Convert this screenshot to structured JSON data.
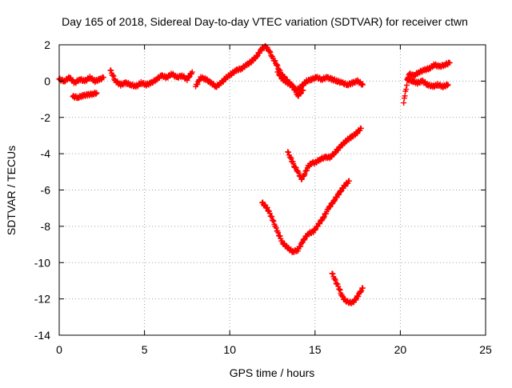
{
  "chart_data": {
    "type": "scatter",
    "title": "Day 165 of 2018, Sidereal Day-to-day VTEC variation (SDTVAR) for receiver ctwn",
    "xlabel": "GPS time / hours",
    "ylabel": "SDTVAR / TECUs",
    "xlim": [
      0,
      25
    ],
    "ylim": [
      -14,
      2
    ],
    "xticks": [
      0,
      5,
      10,
      15,
      20,
      25
    ],
    "yticks": [
      -14,
      -12,
      -10,
      -8,
      -6,
      -4,
      -2,
      0,
      2
    ],
    "grid": true,
    "marker": "plus",
    "legend": "none",
    "series_color": "#ff0000",
    "segments": [
      {
        "x": [
          0.0,
          0.3,
          0.6,
          0.9,
          1.2,
          1.5,
          1.8,
          2.1,
          2.4,
          2.6
        ],
        "y": [
          0.1,
          0.0,
          0.2,
          -0.1,
          0.1,
          0.0,
          0.2,
          0.0,
          0.1,
          0.2
        ]
      },
      {
        "x": [
          0.8,
          1.1,
          1.4,
          1.7,
          2.0,
          2.2
        ],
        "y": [
          -0.85,
          -0.9,
          -0.8,
          -0.75,
          -0.7,
          -0.65
        ]
      },
      {
        "x": [
          3.0,
          3.3,
          3.6,
          3.9,
          4.2,
          4.5,
          4.8,
          5.1,
          5.4,
          5.7,
          6.0,
          6.3,
          6.6,
          6.9,
          7.2,
          7.5,
          7.8
        ],
        "y": [
          0.6,
          0.0,
          -0.2,
          -0.1,
          -0.2,
          -0.3,
          -0.1,
          -0.2,
          -0.1,
          0.1,
          0.3,
          0.2,
          0.4,
          0.2,
          0.3,
          0.1,
          0.5
        ]
      },
      {
        "x": [
          8.0,
          8.3,
          8.6,
          8.9,
          9.2,
          9.5,
          9.8,
          10.1,
          10.4,
          10.7,
          11.0,
          11.3,
          11.6,
          11.9,
          12.1,
          12.3,
          12.5,
          12.7,
          12.9,
          13.1,
          13.3,
          13.6,
          13.9,
          14.2,
          14.5,
          14.8,
          15.1,
          15.4,
          15.7,
          16.0,
          16.3,
          16.6,
          16.9,
          17.2,
          17.5,
          17.8
        ],
        "y": [
          -0.3,
          0.2,
          0.1,
          -0.1,
          -0.3,
          -0.1,
          0.2,
          0.4,
          0.6,
          0.7,
          0.9,
          1.1,
          1.4,
          1.8,
          1.9,
          1.7,
          1.3,
          1.0,
          0.6,
          0.3,
          0.1,
          -0.2,
          -0.5,
          -0.3,
          0.0,
          0.1,
          0.2,
          0.1,
          0.2,
          0.1,
          0.0,
          -0.1,
          -0.2,
          -0.1,
          0.0,
          -0.2
        ]
      },
      {
        "x": [
          12.8,
          13.1,
          13.4,
          13.7,
          14.0,
          14.3
        ],
        "y": [
          0.5,
          0.1,
          -0.1,
          -0.3,
          -0.8,
          -0.5
        ]
      },
      {
        "x": [
          20.2,
          20.3,
          20.5,
          20.8,
          21.1,
          21.4,
          21.7,
          22.0,
          22.3,
          22.6,
          22.9
        ],
        "y": [
          -1.2,
          -0.6,
          0.4,
          0.3,
          0.5,
          0.6,
          0.7,
          0.9,
          0.8,
          0.9,
          1.0
        ]
      },
      {
        "x": [
          20.4,
          20.7,
          21.0,
          21.3,
          21.6,
          21.9,
          22.2,
          22.5,
          22.8
        ],
        "y": [
          0.1,
          0.0,
          -0.1,
          0.0,
          -0.2,
          -0.3,
          -0.2,
          -0.3,
          -0.2
        ]
      },
      {
        "x": [
          13.4,
          13.6,
          13.8,
          14.0,
          14.2,
          14.4,
          14.6,
          14.8,
          15.0,
          15.3,
          15.6,
          15.9,
          16.2,
          16.5,
          16.8,
          17.1,
          17.4,
          17.7
        ],
        "y": [
          -3.9,
          -4.3,
          -4.7,
          -5.0,
          -5.4,
          -5.1,
          -4.7,
          -4.5,
          -4.5,
          -4.3,
          -4.2,
          -4.2,
          -3.9,
          -3.6,
          -3.3,
          -3.1,
          -2.9,
          -2.6
        ]
      },
      {
        "x": [
          11.9,
          12.2,
          12.5,
          12.8,
          13.1,
          13.4,
          13.7,
          14.0,
          14.3,
          14.6,
          14.9,
          15.2,
          15.5,
          15.8,
          16.1,
          16.4,
          16.7,
          17.0
        ],
        "y": [
          -6.7,
          -7.0,
          -7.6,
          -8.3,
          -8.9,
          -9.2,
          -9.4,
          -9.3,
          -8.8,
          -8.4,
          -8.3,
          -7.9,
          -7.5,
          -7.0,
          -6.6,
          -6.2,
          -5.8,
          -5.5
        ]
      },
      {
        "x": [
          16.0,
          16.2,
          16.4,
          16.6,
          16.8,
          17.0,
          17.2,
          17.4,
          17.6,
          17.8
        ],
        "y": [
          -10.6,
          -11.0,
          -11.4,
          -11.9,
          -12.1,
          -12.2,
          -12.2,
          -12.0,
          -11.7,
          -11.4
        ]
      }
    ]
  }
}
